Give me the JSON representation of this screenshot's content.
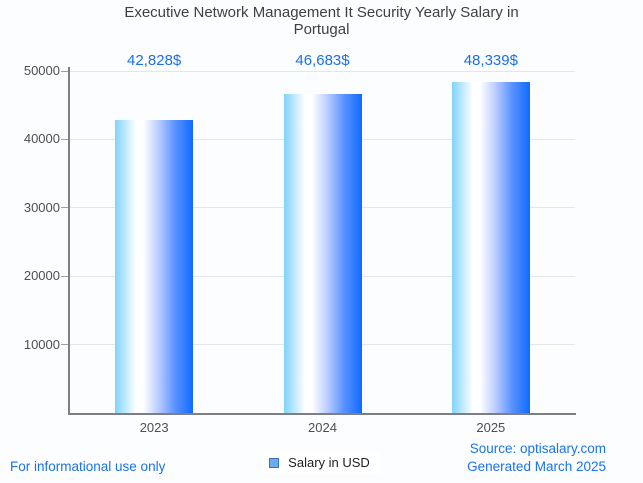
{
  "title": "Executive Network Management It Security Yearly Salary in Portugal",
  "legend": {
    "label": "Salary in USD",
    "swatch_fill": "#6cabf0",
    "swatch_border": "#3e6fbe"
  },
  "footer": {
    "left_note": "For informational use only",
    "source_line1": "Source: optisalary.com",
    "source_line2": "Generated March 2025"
  },
  "colors": {
    "value_label_text": "#1c6fe8",
    "footer_text": "#1a73e8",
    "title_text": "#404040",
    "axis_text": "#4d4f52",
    "grid_line": "#e4e6ea",
    "axis_line": "#7d7f83",
    "bar_gradient": [
      "#7fd3f9",
      "#ffffff",
      "#b9ccff",
      "#5e94ff",
      "#0e6afe"
    ]
  },
  "chart_data": {
    "type": "bar",
    "title": "Executive Network Management It Security Yearly Salary in Portugal",
    "categories": [
      "2023",
      "2024",
      "2025"
    ],
    "series": [
      {
        "name": "Salary in USD",
        "values": [
          42828,
          46683,
          48339
        ]
      }
    ],
    "value_labels": [
      "42,828$",
      "46,683$",
      "48,339$"
    ],
    "xlabel": "",
    "ylabel": "",
    "ylim": [
      0,
      50000
    ],
    "yticks": [
      10000,
      20000,
      30000,
      40000,
      50000
    ],
    "grid": true,
    "legend_position": "bottom"
  }
}
